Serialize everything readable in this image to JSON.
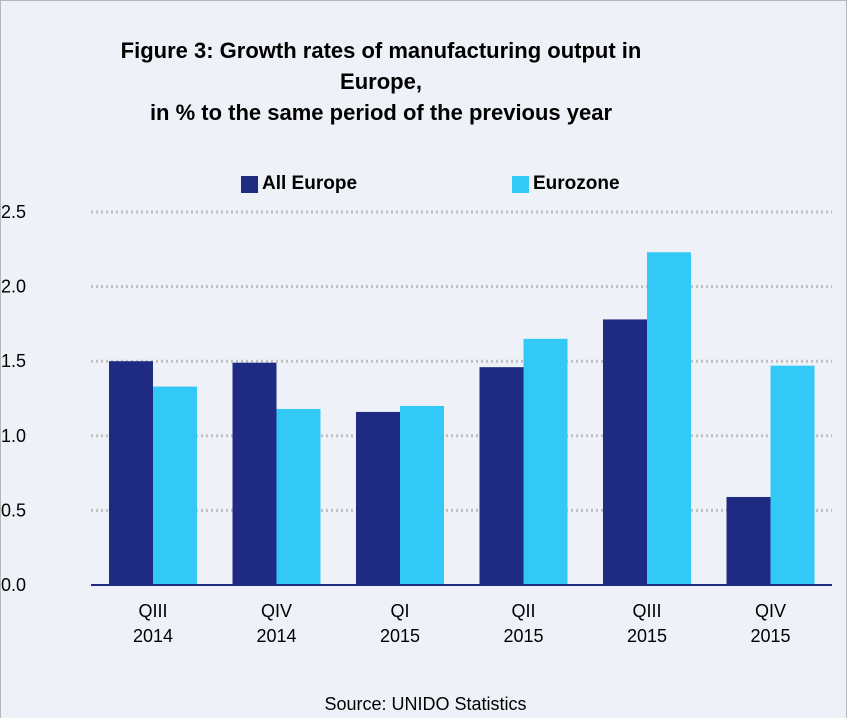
{
  "chart_data": {
    "type": "bar",
    "title_lines": [
      "Figure 3: Growth rates of manufacturing output in",
      "Europe,",
      "in % to the same period of the previous year"
    ],
    "categories": [
      [
        "QIII",
        "2014"
      ],
      [
        "QIV",
        "2014"
      ],
      [
        "QI",
        "2015"
      ],
      [
        "QII",
        "2015"
      ],
      [
        "QIII",
        "2015"
      ],
      [
        "QIV",
        "2015"
      ]
    ],
    "series": [
      {
        "name": "All Europe",
        "color": "#1f2a83",
        "values": [
          1.5,
          1.49,
          1.16,
          1.46,
          1.78,
          0.59
        ]
      },
      {
        "name": "Eurozone",
        "color": "#33c9f7",
        "values": [
          1.33,
          1.18,
          1.2,
          1.65,
          2.23,
          1.47
        ]
      }
    ],
    "ylim": [
      0,
      2.5
    ],
    "yticks": [
      "0.0",
      "0.5",
      "1.0",
      "1.5",
      "2.0",
      "2.5"
    ],
    "grid": "dotted horizontal",
    "legend_position": "top",
    "source": "Source: UNIDO Statistics"
  }
}
